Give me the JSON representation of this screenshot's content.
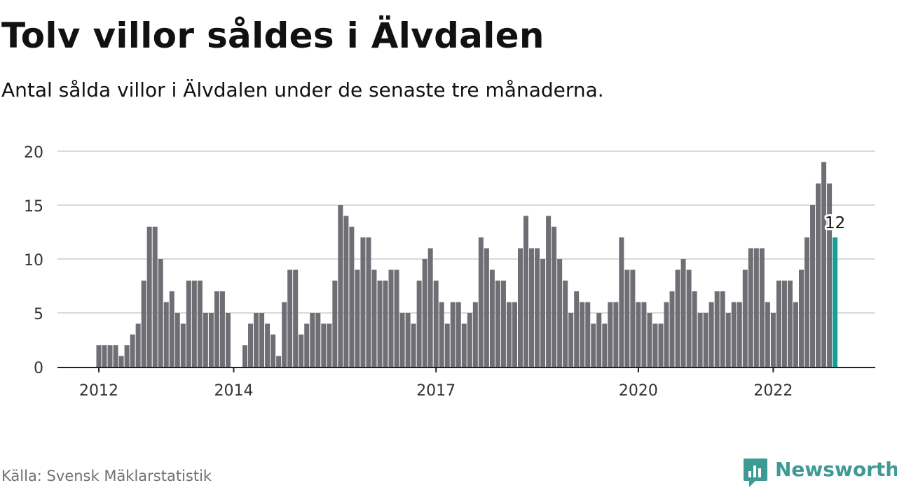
{
  "header": {
    "title": "Tolv villor såldes i Älvdalen",
    "subtitle": "Antal sålda villor i Älvdalen under de senaste tre månaderna."
  },
  "footer": {
    "source": "Källa: Svensk Mäklarstatistik",
    "brand": "Newsworthy",
    "brand_icon": "chart-bubble-icon"
  },
  "colors": {
    "bar": "#6f6e75",
    "highlight": "#159f97",
    "grid": "#d9d9d9",
    "axis": "#222222",
    "brand": "#3d9a94"
  },
  "chart_data": {
    "type": "bar",
    "ylim": [
      0,
      20
    ],
    "yticks": [
      0,
      5,
      10,
      15,
      20
    ],
    "x_start": "2012-01",
    "xticks": [
      {
        "label": "2012",
        "index": 0
      },
      {
        "label": "2014",
        "index": 24
      },
      {
        "label": "2017",
        "index": 60
      },
      {
        "label": "2020",
        "index": 96
      },
      {
        "label": "2022",
        "index": 120
      }
    ],
    "values": [
      2,
      2,
      2,
      2,
      1,
      2,
      3,
      4,
      8,
      13,
      13,
      10,
      6,
      7,
      5,
      4,
      8,
      8,
      8,
      5,
      5,
      7,
      7,
      5,
      null,
      null,
      2,
      4,
      5,
      5,
      4,
      3,
      1,
      6,
      9,
      9,
      3,
      4,
      5,
      5,
      4,
      4,
      8,
      15,
      14,
      13,
      9,
      12,
      12,
      9,
      8,
      8,
      9,
      9,
      5,
      5,
      4,
      8,
      10,
      11,
      8,
      6,
      4,
      6,
      6,
      4,
      5,
      6,
      12,
      11,
      9,
      8,
      8,
      6,
      6,
      11,
      14,
      11,
      11,
      10,
      14,
      13,
      10,
      8,
      5,
      7,
      6,
      6,
      4,
      5,
      4,
      6,
      6,
      12,
      9,
      9,
      6,
      6,
      5,
      4,
      4,
      6,
      7,
      9,
      10,
      9,
      7,
      5,
      5,
      6,
      7,
      7,
      5,
      6,
      6,
      9,
      11,
      11,
      11,
      6,
      5,
      8,
      8,
      8,
      6,
      9,
      12,
      15,
      17,
      19,
      17,
      12
    ],
    "highlight_index": 131,
    "highlight_label": "12",
    "grid": true
  }
}
